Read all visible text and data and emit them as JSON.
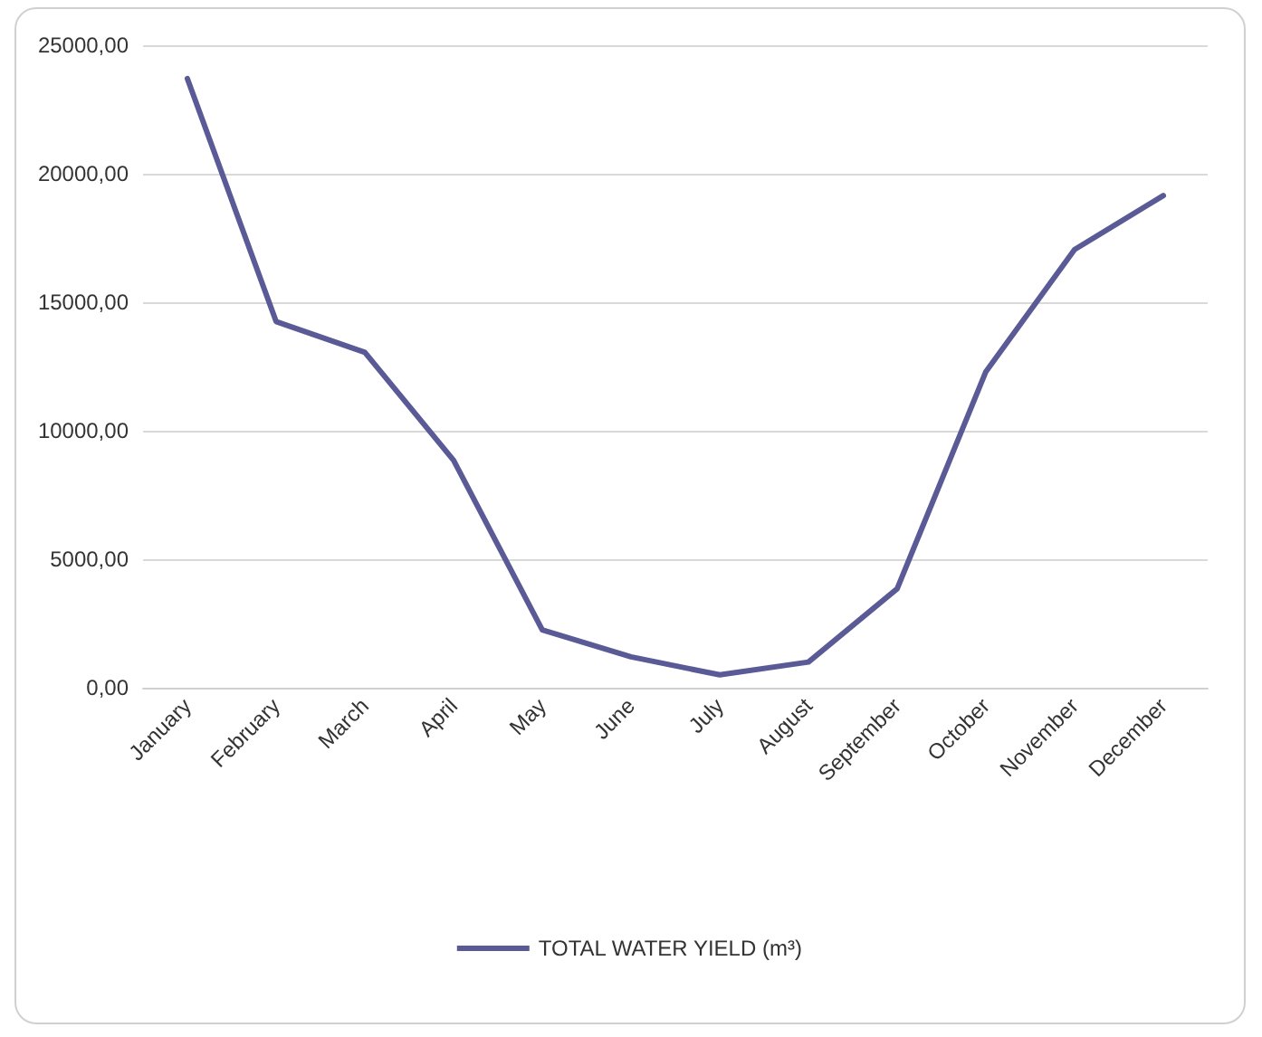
{
  "chart_data": {
    "type": "line",
    "categories": [
      "January",
      "February",
      "March",
      "April",
      "May",
      "June",
      "July",
      "August",
      "September",
      "October",
      "November",
      "December"
    ],
    "series": [
      {
        "name": "TOTAL WATER YIELD (m³)",
        "color": "#5a5a96",
        "values": [
          23700,
          14250,
          13050,
          8850,
          2250,
          1200,
          500,
          1000,
          3850,
          12300,
          17050,
          19150
        ]
      }
    ],
    "ylim": [
      0,
      25000
    ],
    "yticks": [
      {
        "value": 0,
        "label": "0,00"
      },
      {
        "value": 5000,
        "label": "5000,00"
      },
      {
        "value": 10000,
        "label": "10000,00"
      },
      {
        "value": 15000,
        "label": "15000,00"
      },
      {
        "value": 20000,
        "label": "20000,00"
      },
      {
        "value": 25000,
        "label": "25000,00"
      }
    ],
    "grid": "y",
    "legend": "bottom",
    "marker": "none",
    "line_style": "solid"
  }
}
